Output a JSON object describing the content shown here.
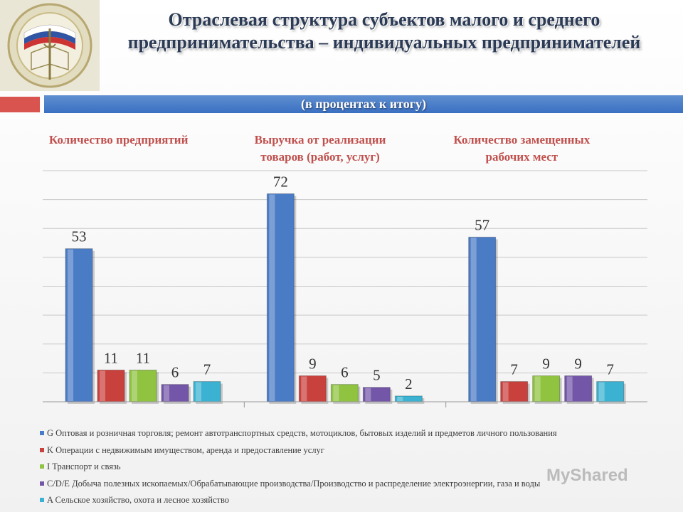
{
  "slide": {
    "title": "Отраслевая структура субъектов малого и среднего предпринимательства – индивидуальных предпринимателей",
    "subtitle": "(в процентах к итогу)"
  },
  "emblem": {
    "icon": "emblem-icon"
  },
  "watermark": "MyShared",
  "colors": {
    "title": "#2b3a55",
    "accent_red": "#d9534f",
    "accent_blue": "#4a7cc6",
    "header_text": "#c0504d",
    "label_text": "#333333"
  },
  "chart_data": {
    "type": "bar",
    "group_titles": [
      [
        "Количество предприятий"
      ],
      [
        "Выручка от реализации",
        "товаров (работ, услуг)"
      ],
      [
        "Количество замещенных",
        "рабочих мест"
      ]
    ],
    "groups": [
      "Количество предприятий",
      "Выручка от реализации товаров (работ, услуг)",
      "Количество замещенных рабочих мест"
    ],
    "series": [
      {
        "name": "G Оптовая и розничная торговля; ремонт автотранспортных средств, мотоциклов, бытовых изделий и предметов личного пользования",
        "color": "#4a7cc6",
        "values": [
          53,
          72,
          57
        ]
      },
      {
        "name": "K Операции с недвижимым имуществом, аренда и предоставление услуг",
        "color": "#c9413d",
        "values": [
          11,
          9,
          7
        ]
      },
      {
        "name": "I Транспорт и связь",
        "color": "#8fc340",
        "values": [
          11,
          6,
          9
        ]
      },
      {
        "name": "C/D/E Добыча полезных ископаемых/Обрабатывающие производства/Производство и распределение электроэнергии, газа и воды",
        "color": "#7456a8",
        "values": [
          6,
          5,
          9
        ]
      },
      {
        "name": "A Сельское хозяйство, охота и лесное хозяйство",
        "color": "#3bb2d1",
        "values": [
          7,
          2,
          7
        ]
      }
    ],
    "ylim": [
      0,
      80
    ],
    "grid": true,
    "legend_position": "bottom"
  }
}
